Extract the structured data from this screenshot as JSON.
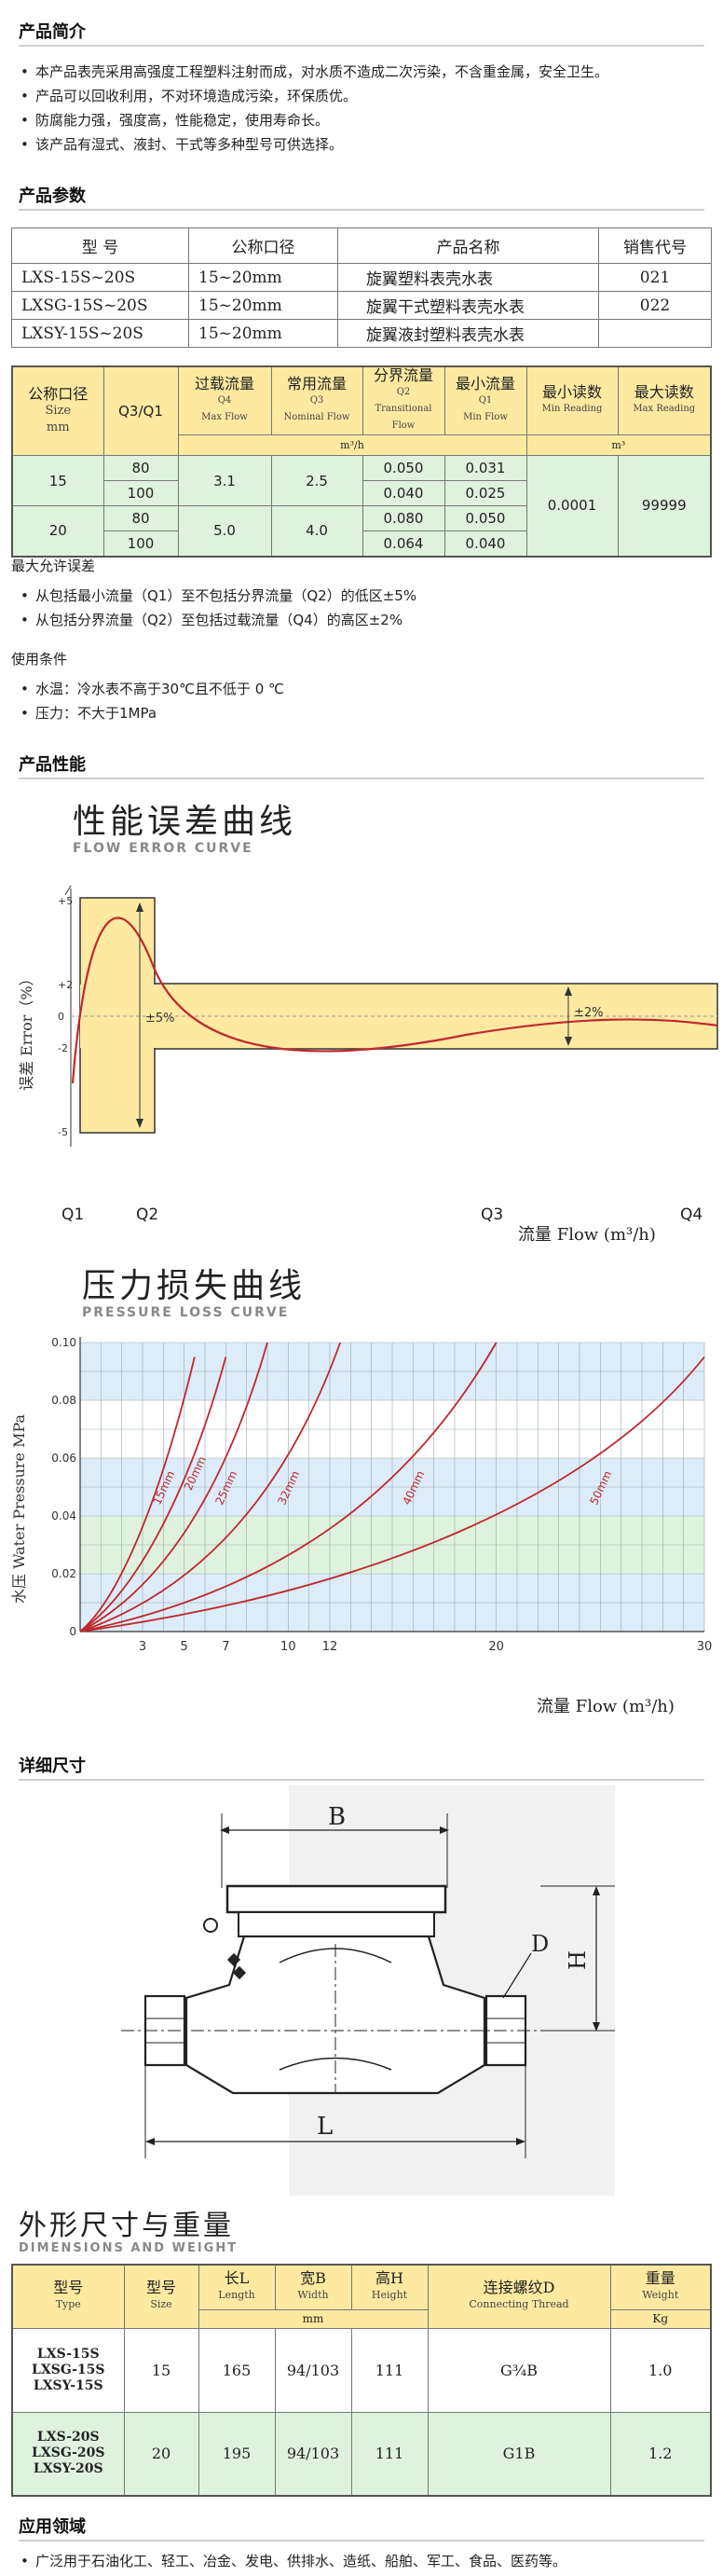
{
  "intro": {
    "heading": "产品简介",
    "bullets": [
      "本产品表壳采用高强度工程塑料注射而成，对水质不造成二次污染，不含重金属，安全卫生。",
      "产品可以回收利用，不对环境造成污染，环保质优。",
      "防腐能力强，强度高，性能稳定，使用寿命长。",
      "该产品有湿式、液封、干式等多种型号可供选择。"
    ]
  },
  "params": {
    "heading": "产品参数",
    "headers": [
      "型  号",
      "公称口径",
      "产品名称",
      "销售代号"
    ],
    "rows": [
      [
        "LXS-15S~20S",
        "15~20mm",
        "旋翼塑料表壳水表",
        "021"
      ],
      [
        "LXSG-15S~20S",
        "15~20mm",
        "旋翼干式塑料表壳水表",
        "022"
      ],
      [
        "LXSY-15S~20S",
        "15~20mm",
        "旋翼液封塑料表壳水表",
        ""
      ]
    ]
  },
  "flow_table": {
    "h_size": "公称口径",
    "h_size_en": "Size",
    "h_size_unit": "mm",
    "h_ratio": "Q3/Q1",
    "h_q4": "过载流量",
    "h_q4_code": "Q4",
    "h_q4_en": "Max Flow",
    "h_q3": "常用流量",
    "h_q3_code": "Q3",
    "h_q3_en": "Nominal Flow",
    "h_q2": "分界流量",
    "h_q2_code": "Q2",
    "h_q2_en": "Transitional Flow",
    "h_q1": "最小流量",
    "h_q1_code": "Q1",
    "h_q1_en": "Min Flow",
    "h_min": "最小读数",
    "h_min_en": "Min Reading",
    "h_max": "最大读数",
    "h_max_en": "Max Reading",
    "unit_flow": "m³/h",
    "unit_read": "m³",
    "size15": "15",
    "size20": "20",
    "r15a": [
      "80",
      "0.050",
      "0.031"
    ],
    "r15b": [
      "100",
      "0.040",
      "0.025"
    ],
    "r20a": [
      "80",
      "0.080",
      "0.050"
    ],
    "r20b": [
      "100",
      "0.064",
      "0.040"
    ],
    "q4_15": "3.1",
    "q3_15": "2.5",
    "q4_20": "5.0",
    "q3_20": "4.0",
    "min_read": "0.0001",
    "max_read": "99999"
  },
  "error_note": {
    "heading": "最大允许误差",
    "bullets": [
      "从包括最小流量（Q1）至不包括分界流量（Q2）的低区±5%",
      "从包括分界流量（Q2）至包括过载流量（Q4）的高区±2%"
    ]
  },
  "usage": {
    "heading": "使用条件",
    "bullets": [
      "水温：冷水表不高于30℃且不低于 0 ℃",
      "压力：不大于1MPa"
    ]
  },
  "performance": {
    "heading": "产品性能"
  },
  "flow_error_curve": {
    "title_cn": "性能误差曲线",
    "title_en": "FLOW ERROR CURVE",
    "ylabel": "误差 Error（%）",
    "xlabel": "流量  Flow (m³/h)",
    "ticks_y": [
      "+5",
      "+2",
      "0",
      "-2",
      "-5"
    ],
    "ticks_x": [
      "Q1",
      "Q2",
      "Q3",
      "Q4"
    ],
    "band_low": "±5%",
    "band_high": "±2%"
  },
  "pressure_curve": {
    "title_cn": "压力损失曲线",
    "title_en": "PRESSURE LOSS CURVE",
    "ylabel": "水压 Water Pressure MPa",
    "xlabel": "流量  Flow (m³/h)",
    "yticks": [
      "0.10",
      "0.08",
      "0.06",
      "0.04",
      "0.02"
    ],
    "y0": "0",
    "xticks": [
      "3",
      "5",
      "7",
      "10",
      "12",
      "20",
      "30"
    ],
    "curves": [
      "15mm",
      "20mm",
      "25mm",
      "32mm",
      "40mm",
      "50mm"
    ]
  },
  "chart_data": [
    {
      "type": "line",
      "title": "性能误差曲线 FLOW ERROR CURVE",
      "xlabel": "流量 Flow (m³/h)",
      "ylabel": "误差 Error（%）",
      "x": [
        "Q1",
        "Q2",
        "Q3",
        "Q4"
      ],
      "ylim": [
        -5,
        5
      ],
      "bands": [
        {
          "range": [
            "Q1",
            "Q2"
          ],
          "tolerance": "±5%"
        },
        {
          "range": [
            "Q2",
            "Q4"
          ],
          "tolerance": "±2%"
        }
      ]
    },
    {
      "type": "line",
      "title": "压力损失曲线 PRESSURE LOSS CURVE",
      "xlabel": "流量 Flow (m³/h)",
      "ylabel": "水压 Water Pressure MPa",
      "xlim": [
        0,
        30
      ],
      "ylim": [
        0,
        0.1
      ],
      "series": [
        {
          "name": "15mm",
          "x": [
            0,
            2,
            4,
            5.5
          ],
          "y": [
            0,
            0.012,
            0.05,
            0.095
          ]
        },
        {
          "name": "20mm",
          "x": [
            0,
            3,
            5.5,
            7
          ],
          "y": [
            0,
            0.015,
            0.055,
            0.095
          ]
        },
        {
          "name": "25mm",
          "x": [
            0,
            4,
            7,
            9
          ],
          "y": [
            0,
            0.015,
            0.05,
            0.1
          ]
        },
        {
          "name": "32mm",
          "x": [
            0,
            6,
            10,
            12.5
          ],
          "y": [
            0,
            0.015,
            0.05,
            0.1
          ]
        },
        {
          "name": "40mm",
          "x": [
            0,
            10,
            16,
            20
          ],
          "y": [
            0,
            0.015,
            0.05,
            0.1
          ]
        },
        {
          "name": "50mm",
          "x": [
            0,
            15,
            25,
            30
          ],
          "y": [
            0,
            0.015,
            0.05,
            0.095
          ]
        }
      ]
    }
  ],
  "dimensions": {
    "heading": "详细尺寸",
    "label_b": "B",
    "label_d": "D",
    "label_h": "H",
    "label_l": "L"
  },
  "weight": {
    "title_cn": "外形尺寸与重量",
    "title_en": "DIMENSIONS AND WEIGHT",
    "h_type": "型号",
    "h_type_en": "Type",
    "h_size": "型号",
    "h_size_en": "Size",
    "h_len": "长L",
    "h_len_en": "Length",
    "h_wid": "宽B",
    "h_wid_en": "Width",
    "h_hei": "高H",
    "h_hei_en": "Height",
    "h_thr": "连接螺纹D",
    "h_thr_en": "Connecting Thread",
    "h_wt": "重量",
    "h_wt_en": "Weight",
    "unit_mm": "mm",
    "unit_kg": "Kg",
    "r1_types": [
      "LXS-15S",
      "LXSG-15S",
      "LXSY-15S"
    ],
    "r1": [
      "15",
      "165",
      "94/103",
      "111",
      "G¾B",
      "1.0"
    ],
    "r2_types": [
      "LXS-20S",
      "LXSG-20S",
      "LXSY-20S"
    ],
    "r2": [
      "20",
      "195",
      "94/103",
      "111",
      "G1B",
      "1.2"
    ]
  },
  "application": {
    "heading": "应用领域",
    "text": "广泛用于石油化工、轻工、冶金、发电、供排水、造纸、船舶、军工、食品、医药等。"
  }
}
